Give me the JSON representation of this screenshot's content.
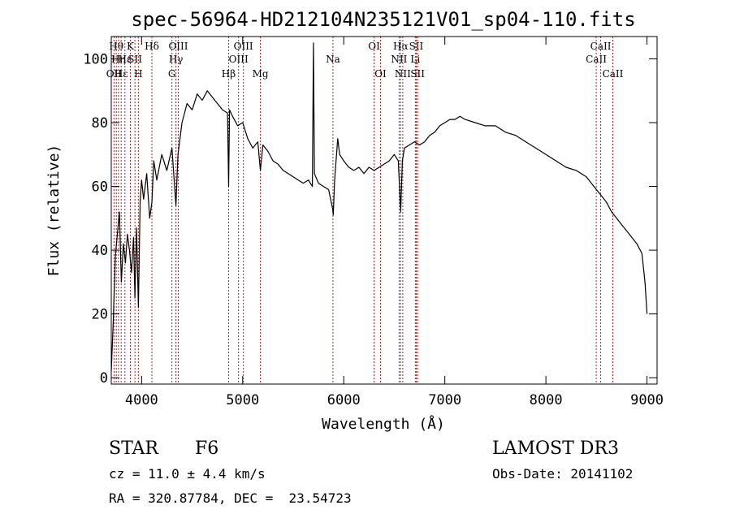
{
  "chart_data": {
    "type": "line",
    "title": "spec-56964-HD212104N235121V01_sp04-110.fits",
    "xlabel": "Wavelength (Å)",
    "ylabel": "Flux (relative)",
    "xlim": [
      3700,
      9100
    ],
    "ylim": [
      -2,
      107
    ],
    "xticks": [
      4000,
      5000,
      6000,
      7000,
      8000,
      9000
    ],
    "yticks": [
      0,
      20,
      40,
      60,
      80,
      100
    ],
    "series": [
      {
        "name": "spectrum",
        "x": [
          3700,
          3720,
          3740,
          3760,
          3780,
          3800,
          3820,
          3840,
          3860,
          3880,
          3900,
          3920,
          3934,
          3950,
          3968,
          3985,
          4000,
          4020,
          4050,
          4080,
          4102,
          4120,
          4150,
          4200,
          4250,
          4300,
          4340,
          4360,
          4400,
          4450,
          4500,
          4550,
          4600,
          4650,
          4700,
          4750,
          4800,
          4850,
          4861,
          4870,
          4900,
          4950,
          5000,
          5050,
          5100,
          5150,
          5175,
          5200,
          5250,
          5300,
          5350,
          5400,
          5450,
          5500,
          5550,
          5600,
          5650,
          5690,
          5700,
          5710,
          5750,
          5800,
          5850,
          5890,
          5896,
          5910,
          5940,
          5960,
          6000,
          6050,
          6100,
          6150,
          6200,
          6250,
          6300,
          6350,
          6400,
          6450,
          6500,
          6540,
          6563,
          6580,
          6600,
          6650,
          6700,
          6750,
          6800,
          6850,
          6900,
          6950,
          7000,
          7050,
          7100,
          7150,
          7200,
          7300,
          7400,
          7500,
          7600,
          7700,
          7800,
          7900,
          8000,
          8100,
          8200,
          8300,
          8400,
          8450,
          8500,
          8550,
          8600,
          8650,
          8700,
          8750,
          8800,
          8850,
          8900,
          8950,
          8980,
          9000
        ],
        "values": [
          2,
          18,
          38,
          45,
          52,
          30,
          42,
          36,
          45,
          40,
          33,
          44,
          25,
          47,
          22,
          55,
          62,
          56,
          64,
          50,
          55,
          68,
          62,
          70,
          65,
          72,
          54,
          70,
          80,
          86,
          84,
          89,
          87,
          90,
          88,
          86,
          84,
          83,
          60,
          84,
          82,
          79,
          80,
          75,
          72,
          74,
          65,
          73,
          71,
          68,
          67,
          65,
          64,
          63,
          62,
          61,
          62,
          60,
          105,
          64,
          61,
          60,
          59,
          53,
          51,
          62,
          75,
          70,
          68,
          66,
          65,
          66,
          64,
          66,
          65,
          66,
          67,
          68,
          70,
          68,
          52,
          68,
          72,
          73,
          74,
          73,
          74,
          76,
          77,
          79,
          80,
          81,
          81,
          82,
          81,
          80,
          79,
          79,
          77,
          76,
          74,
          72,
          70,
          68,
          66,
          65,
          63,
          61,
          59,
          57,
          55,
          52,
          50,
          48,
          46,
          44,
          42,
          39,
          30,
          20
        ]
      }
    ],
    "line_markers": [
      {
        "wl": 3727,
        "label": "OII",
        "row": 2
      },
      {
        "wl": 3750,
        "label": "Hθ",
        "row": 0
      },
      {
        "wl": 3771,
        "label": "Hη",
        "row": 1
      },
      {
        "wl": 3798,
        "label": "Hε",
        "row": 2
      },
      {
        "wl": 3835,
        "label": "Hε",
        "row": 1
      },
      {
        "wl": 3889,
        "label": "K",
        "row": 0
      },
      {
        "wl": 3934,
        "label": "SII",
        "row": 1
      },
      {
        "wl": 3968,
        "label": "H",
        "row": 2
      },
      {
        "wl": 4102,
        "label": "Hδ",
        "row": 0
      },
      {
        "wl": 4300,
        "label": "G",
        "row": 2
      },
      {
        "wl": 4340,
        "label": "Hγ",
        "row": 1
      },
      {
        "wl": 4363,
        "label": "OIII",
        "row": 0
      },
      {
        "wl": 4861,
        "label": "Hβ",
        "row": 2
      },
      {
        "wl": 4959,
        "label": "OIII",
        "row": 1
      },
      {
        "wl": 5007,
        "label": "OIII",
        "row": 0
      },
      {
        "wl": 5175,
        "label": "Mg",
        "row": 2
      },
      {
        "wl": 5893,
        "label": "Na",
        "row": 1
      },
      {
        "wl": 6300,
        "label": "OI",
        "row": 0
      },
      {
        "wl": 6364,
        "label": "OI",
        "row": 2
      },
      {
        "wl": 6548,
        "label": "NII",
        "row": 1
      },
      {
        "wl": 6563,
        "label": "Hα",
        "row": 0
      },
      {
        "wl": 6584,
        "label": "NII",
        "row": 2
      },
      {
        "wl": 6708,
        "label": "Li",
        "row": 1
      },
      {
        "wl": 6717,
        "label": "SII",
        "row": 0
      },
      {
        "wl": 6731,
        "label": "SII",
        "row": 2
      },
      {
        "wl": 8498,
        "label": "CaII",
        "row": 1
      },
      {
        "wl": 8542,
        "label": "CaII",
        "row": 0
      },
      {
        "wl": 8662,
        "label": "CaII",
        "row": 2
      }
    ]
  },
  "info": {
    "object_type": "STAR",
    "subclass": "F6",
    "survey": "LAMOST DR3",
    "cz": "cz = 11.0 ± 4.4 km/s",
    "obs_date": "Obs-Date: 20141102",
    "coords": "RA = 320.87784, DEC =  23.54723"
  }
}
